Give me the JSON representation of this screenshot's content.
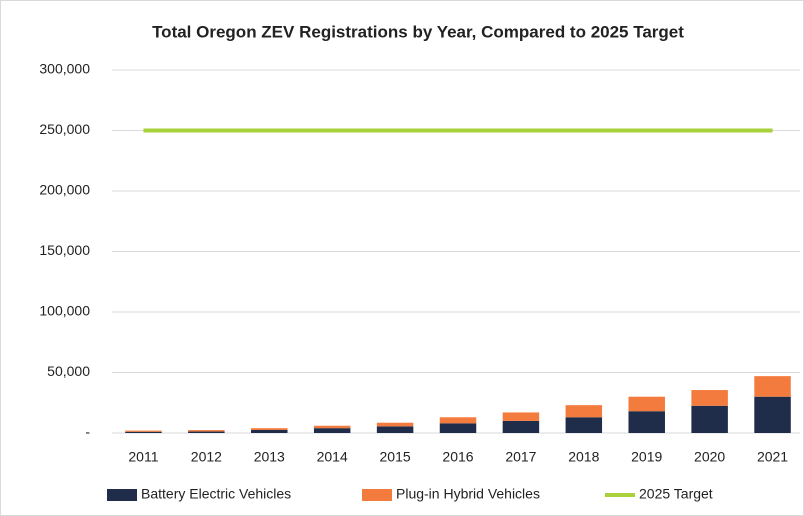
{
  "chart_data": {
    "type": "bar",
    "title": "Total Oregon ZEV Registrations by Year, Compared to 2025 Target",
    "categories": [
      "2011",
      "2012",
      "2013",
      "2014",
      "2015",
      "2016",
      "2017",
      "2018",
      "2019",
      "2020",
      "2021"
    ],
    "series": [
      {
        "name": "Battery Electric Vehicles",
        "color": "#1f2d4a",
        "values": [
          1000,
          1200,
          2500,
          4000,
          5500,
          8000,
          10000,
          13000,
          18000,
          22500,
          30000
        ]
      },
      {
        "name": "Plug-in Hybrid Vehicles",
        "color": "#f47b3e",
        "values": [
          1000,
          1200,
          1500,
          2000,
          3000,
          5000,
          7000,
          10000,
          12000,
          13000,
          17000
        ]
      },
      {
        "name": "2025 Target",
        "color": "#a9d13c",
        "type": "line",
        "values": [
          250000,
          250000,
          250000,
          250000,
          250000,
          250000,
          250000,
          250000,
          250000,
          250000,
          250000
        ]
      }
    ],
    "ylim": [
      0,
      300000
    ],
    "yticks": [
      {
        "value": 0,
        "label": "-"
      },
      {
        "value": 50000,
        "label": "50,000"
      },
      {
        "value": 100000,
        "label": "100,000"
      },
      {
        "value": 150000,
        "label": "150,000"
      },
      {
        "value": 200000,
        "label": "200,000"
      },
      {
        "value": 250000,
        "label": "250,000"
      },
      {
        "value": 300000,
        "label": "300,000"
      }
    ],
    "grid": true,
    "stacked": true,
    "legend": "bottom"
  }
}
